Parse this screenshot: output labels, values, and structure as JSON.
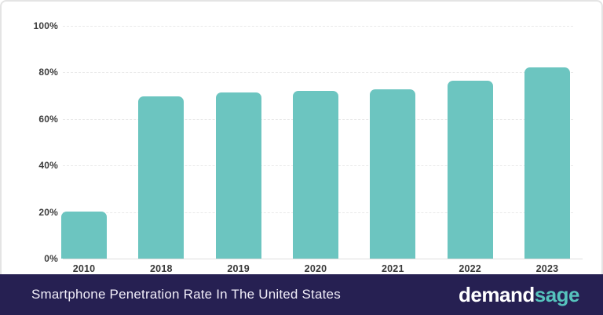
{
  "chart_data": {
    "type": "bar",
    "categories": [
      "2010",
      "2018",
      "2019",
      "2020",
      "2021",
      "2022",
      "2023"
    ],
    "values": [
      20.2,
      69.6,
      71.5,
      72.2,
      72.7,
      76.5,
      82.2
    ],
    "title": "Smartphone Penetration Rate In The United States",
    "xlabel": "",
    "ylabel": "",
    "ylim": [
      0,
      100
    ],
    "yticks": [
      0,
      20,
      40,
      60,
      80,
      100
    ],
    "ytick_labels": [
      "0%",
      "20%",
      "40%",
      "60%",
      "80%",
      "100%"
    ],
    "grid": "horizontal-dashed",
    "legend": "none",
    "bar_color": "#6cc5c0"
  },
  "footer": {
    "title": "Smartphone Penetration Rate In The United States",
    "brand_part1": "demand",
    "brand_part2": "sage",
    "bg_color": "#262052",
    "brand_part1_color": "#ffffff",
    "brand_part2_color": "#56c3bd"
  },
  "colors": {
    "bar": "#6cc5c0",
    "gridline": "#e9e9e9",
    "axis_line": "#dddddd",
    "tick_text": "#3d3d3d",
    "card_border": "#e4e4e4",
    "footer_bg": "#262052",
    "footer_text": "#f1eef9"
  }
}
